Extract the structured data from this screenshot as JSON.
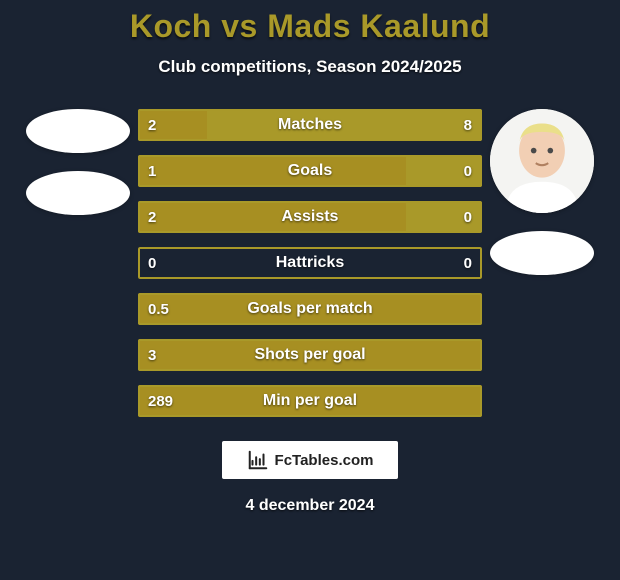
{
  "background_color": "#1a2332",
  "title": {
    "left": "Koch",
    "vs": "vs",
    "right": "Mads Kaalund",
    "color": "#a99929",
    "fontsize": 32
  },
  "subtitle": {
    "text": "Club competitions, Season 2024/2025",
    "color": "#ffffff",
    "fontsize": 17
  },
  "players": {
    "left": {
      "has_photo": false,
      "name": "Koch"
    },
    "right": {
      "has_photo": true,
      "name": "Mads Kaalund",
      "skin": "#f2cfb4",
      "hair": "#eadf8a",
      "shirt": "#ffffff"
    }
  },
  "bars": {
    "left_color": "#a78f22",
    "right_color": "#a99929",
    "track_color": "#1a2332",
    "border_color": "#a99929",
    "text_color": "#ffffff",
    "height": 32,
    "items": [
      {
        "label": "Matches",
        "left": "2",
        "right": "8",
        "left_ratio": 0.2,
        "right_ratio": 0.8
      },
      {
        "label": "Goals",
        "left": "1",
        "right": "0",
        "left_ratio": 0.78,
        "right_ratio": 0.22
      },
      {
        "label": "Assists",
        "left": "2",
        "right": "0",
        "left_ratio": 0.78,
        "right_ratio": 0.22
      },
      {
        "label": "Hattricks",
        "left": "0",
        "right": "0",
        "left_ratio": 0.0,
        "right_ratio": 0.0
      },
      {
        "label": "Goals per match",
        "left": "0.5",
        "right": "",
        "left_ratio": 1.0,
        "right_ratio": 0.0
      },
      {
        "label": "Shots per goal",
        "left": "3",
        "right": "",
        "left_ratio": 1.0,
        "right_ratio": 0.0
      },
      {
        "label": "Min per goal",
        "left": "289",
        "right": "",
        "left_ratio": 1.0,
        "right_ratio": 0.0
      }
    ]
  },
  "branding": {
    "text": "FcTables.com",
    "background": "#ffffff",
    "text_color": "#222222",
    "icon_color": "#222222"
  },
  "date": "4 december 2024"
}
